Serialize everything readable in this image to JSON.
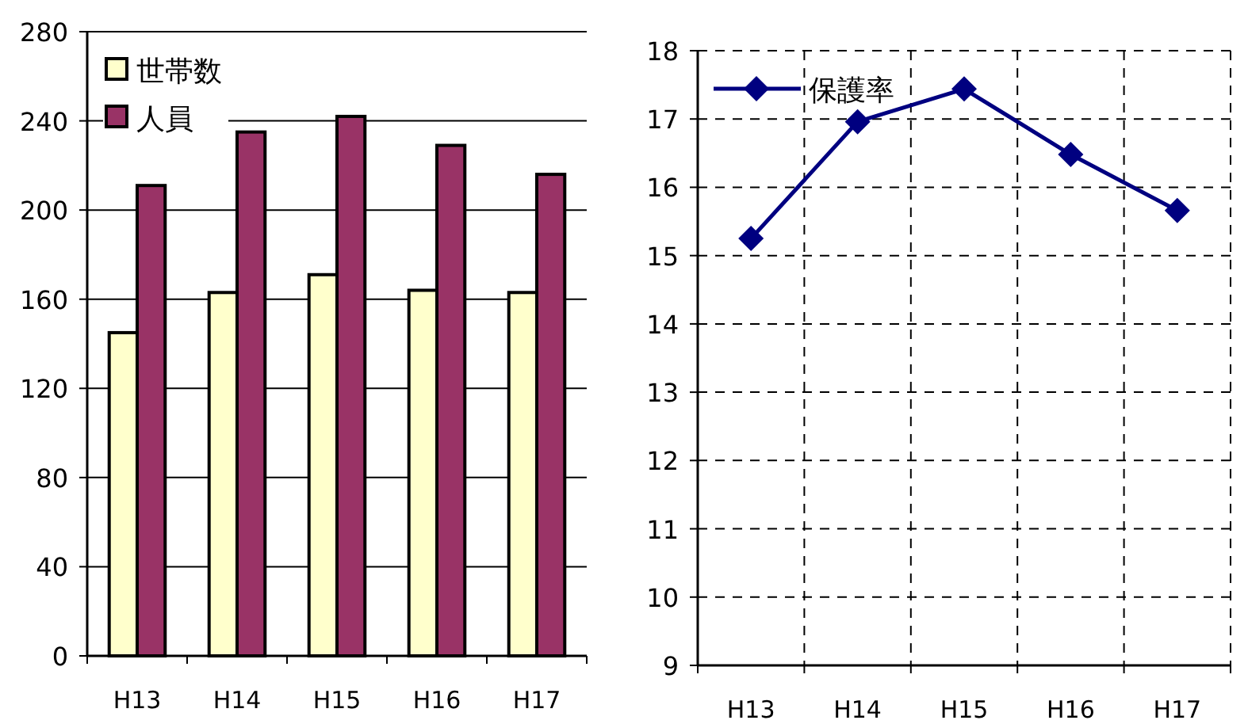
{
  "chart_data": [
    {
      "type": "bar",
      "categories": [
        "H13",
        "H14",
        "H15",
        "H16",
        "H17"
      ],
      "series": [
        {
          "name": "世帯数",
          "color": "#ffffcc",
          "values": [
            145,
            163,
            171,
            164,
            163
          ]
        },
        {
          "name": "人員",
          "color": "#993366",
          "values": [
            211,
            235,
            242,
            229,
            216
          ]
        }
      ],
      "ylim": [
        0,
        280
      ],
      "yticks": [
        0,
        40,
        80,
        120,
        160,
        200,
        240,
        280
      ],
      "grid": "y",
      "legend": "top left"
    },
    {
      "type": "line",
      "categories": [
        "H13",
        "H14",
        "H15",
        "H16",
        "H17"
      ],
      "series": [
        {
          "name": "保護率",
          "color": "#000080",
          "values": [
            15.25,
            16.96,
            17.44,
            16.48,
            15.66
          ]
        }
      ],
      "ylim": [
        9,
        18
      ],
      "yticks": [
        9,
        10,
        11,
        12,
        13,
        14,
        15,
        16,
        17,
        18
      ],
      "grid": true,
      "legend": "top left",
      "marker": "diamond",
      "line_style": "solid"
    }
  ]
}
